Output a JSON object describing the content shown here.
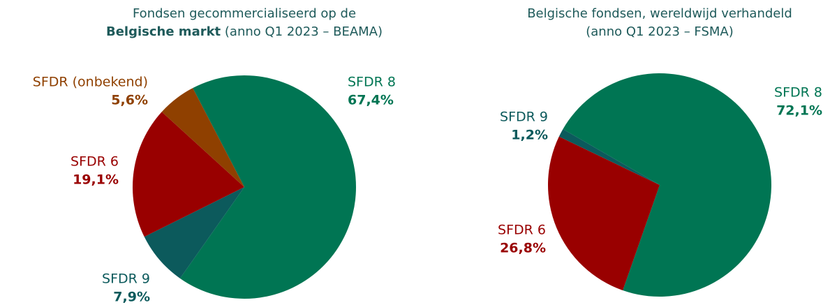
{
  "chart_data": [
    {
      "type": "pie",
      "title": [
        "Fondsen gecommercialiseerd op de",
        "Belgische markt",
        "(anno Q1 2023 – BEAMA)"
      ],
      "categories": [
        "SFDR 8",
        "SFDR 9",
        "SFDR 6",
        "SFDR (onbekend)"
      ],
      "values": [
        67.4,
        7.9,
        19.1,
        5.6
      ],
      "value_labels": [
        "67,4%",
        "7,9%",
        "19,1%",
        "5,6%"
      ],
      "colors": [
        "#007553",
        "#0c5a5c",
        "#990000",
        "#8f4000"
      ]
    },
    {
      "type": "pie",
      "title": [
        "Belgische fondsen, wereldwijd verhandeld",
        "(anno Q1 2023 – FSMA)"
      ],
      "categories": [
        "SFDR 8",
        "SFDR 6",
        "SFDR 9"
      ],
      "values": [
        72.1,
        26.8,
        1.2
      ],
      "value_labels": [
        "72,1%",
        "26,8%",
        "1,2%"
      ],
      "colors": [
        "#007553",
        "#990000",
        "#0c5a5c"
      ]
    }
  ]
}
